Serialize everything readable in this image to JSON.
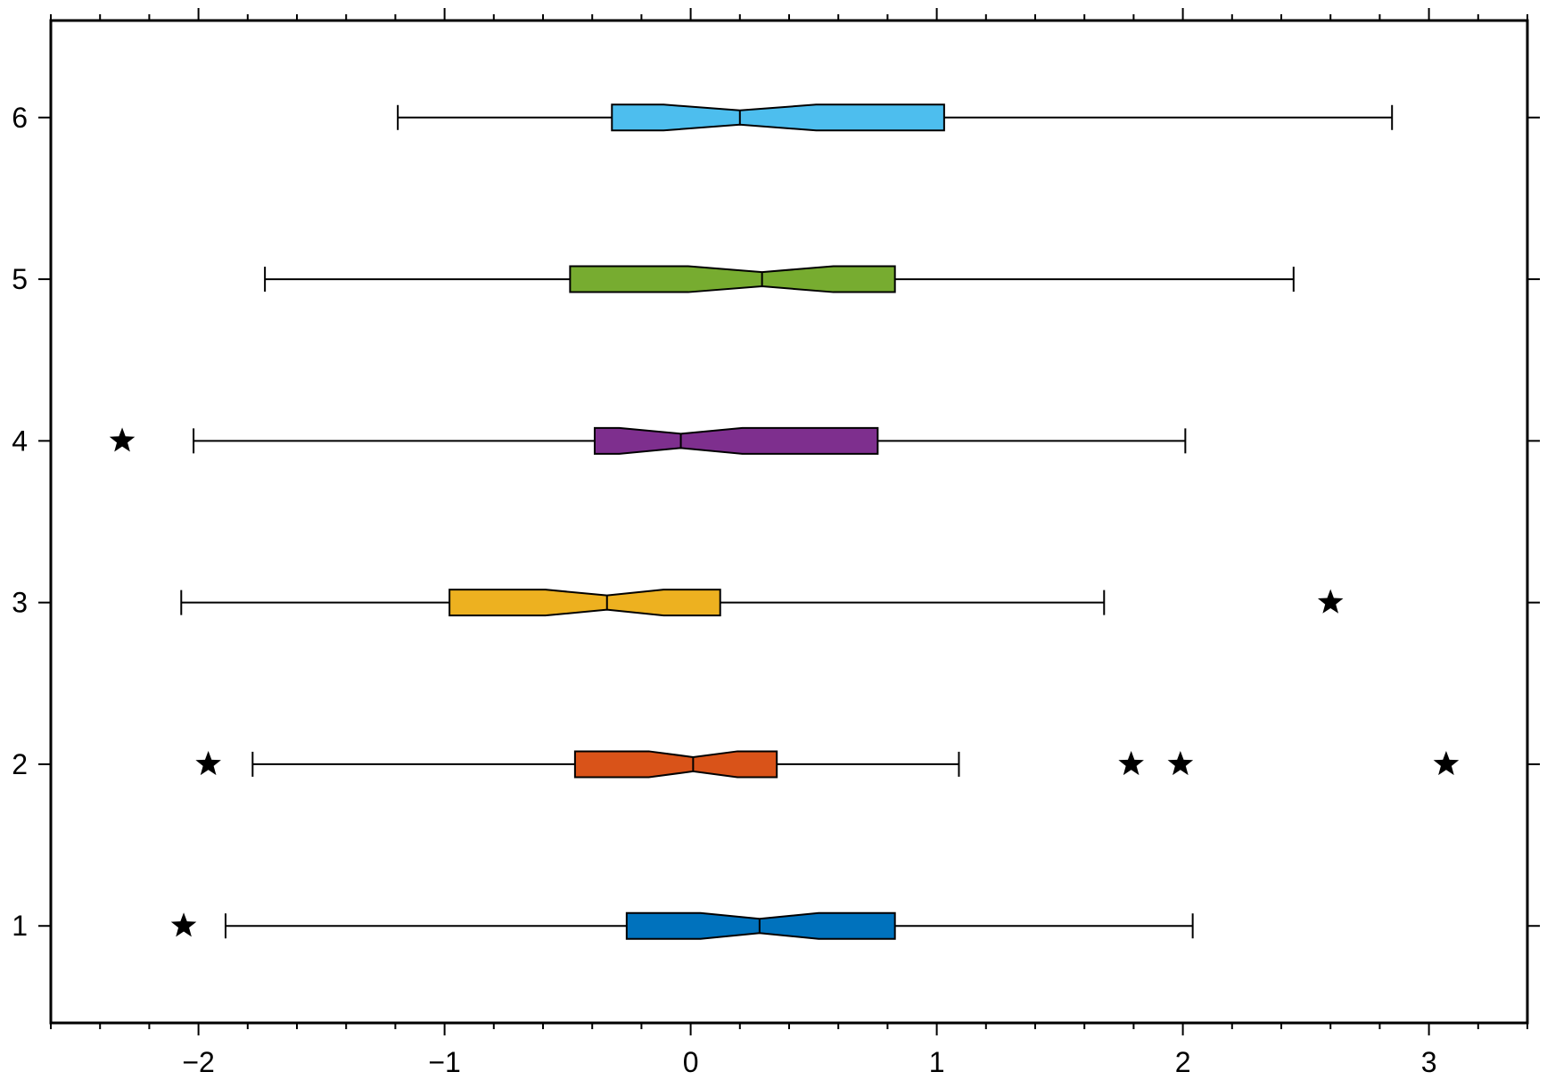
{
  "chart_data": {
    "type": "boxplot",
    "orientation": "horizontal",
    "notched": true,
    "title": "",
    "xlabel": "",
    "ylabel": "",
    "xlim": [
      -2.6,
      3.4
    ],
    "ylim": [
      0.4,
      6.6
    ],
    "x_ticks": [
      {
        "value": -2,
        "label": "−2"
      },
      {
        "value": -1,
        "label": "−1"
      },
      {
        "value": 0,
        "label": "0"
      },
      {
        "value": 1,
        "label": "1"
      },
      {
        "value": 2,
        "label": "2"
      },
      {
        "value": 3,
        "label": "3"
      }
    ],
    "y_ticks": [
      {
        "value": 1,
        "label": "1"
      },
      {
        "value": 2,
        "label": "2"
      },
      {
        "value": 3,
        "label": "3"
      },
      {
        "value": 4,
        "label": "4"
      },
      {
        "value": 5,
        "label": "5"
      },
      {
        "value": 6,
        "label": "6"
      }
    ],
    "grid": false,
    "outlier_marker": "star",
    "boxes": [
      {
        "position": 1,
        "whisker_low": -1.89,
        "q1": -0.26,
        "notch_low": 0.04,
        "median": 0.28,
        "notch_high": 0.52,
        "q3": 0.83,
        "whisker_high": 2.04,
        "outliers": [
          -2.06
        ],
        "color": "#0072BD"
      },
      {
        "position": 2,
        "whisker_low": -1.78,
        "q1": -0.47,
        "notch_low": -0.17,
        "median": 0.01,
        "notch_high": 0.19,
        "q3": 0.35,
        "whisker_high": 1.09,
        "outliers": [
          -1.96,
          1.79,
          1.99,
          3.07
        ],
        "color": "#D95319"
      },
      {
        "position": 3,
        "whisker_low": -2.07,
        "q1": -0.98,
        "notch_low": -0.59,
        "median": -0.34,
        "notch_high": -0.11,
        "q3": 0.12,
        "whisker_high": 1.68,
        "outliers": [
          2.6
        ],
        "color": "#EDB120"
      },
      {
        "position": 4,
        "whisker_low": -2.02,
        "q1": -0.39,
        "notch_low": -0.29,
        "median": -0.04,
        "notch_high": 0.21,
        "q3": 0.76,
        "whisker_high": 2.01,
        "outliers": [
          -2.31
        ],
        "color": "#7E2F8E"
      },
      {
        "position": 5,
        "whisker_low": -1.73,
        "q1": -0.49,
        "notch_low": -0.01,
        "median": 0.29,
        "notch_high": 0.58,
        "q3": 0.83,
        "whisker_high": 2.45,
        "outliers": [],
        "color": "#77AC30"
      },
      {
        "position": 6,
        "whisker_low": -1.19,
        "q1": -0.32,
        "notch_low": -0.11,
        "median": 0.2,
        "notch_high": 0.51,
        "q3": 1.03,
        "whisker_high": 2.85,
        "outliers": [],
        "color": "#4DBEEE"
      }
    ]
  }
}
